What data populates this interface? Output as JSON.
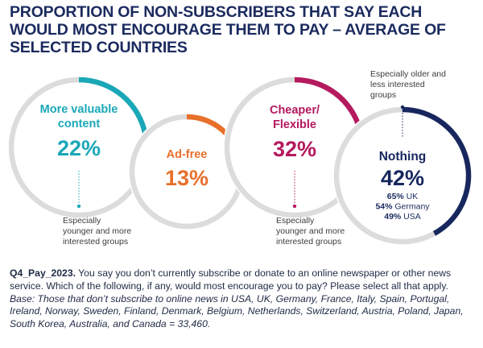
{
  "title": "PROPORTION OF NON-SUBSCRIBERS THAT SAY EACH WOULD MOST ENCOURAGE THEM TO PAY – AVERAGE OF SELECTED COUNTRIES",
  "chart_data": {
    "type": "pie",
    "title": "PROPORTION OF NON-SUBSCRIBERS THAT SAY EACH WOULD MOST ENCOURAGE THEM TO PAY – AVERAGE OF SELECTED COUNTRIES",
    "unit": "%",
    "items": [
      {
        "label_lines": [
          "More valuable",
          "content"
        ],
        "value": 22,
        "value_label": "22%",
        "color": "#1aa8b8",
        "annotation_lines": [
          "Especially",
          "younger and more",
          "interested groups"
        ]
      },
      {
        "label_lines": [
          "Ad-free"
        ],
        "value": 13,
        "value_label": "13%",
        "color": "#e8702a"
      },
      {
        "label_lines": [
          "Cheaper/",
          "Flexible"
        ],
        "value": 32,
        "value_label": "32%",
        "color": "#b5195e",
        "annotation_lines": [
          "Especially",
          "younger and more",
          "interested groups"
        ]
      },
      {
        "label_lines": [
          "Nothing"
        ],
        "value": 42,
        "value_label": "42%",
        "color": "#17275e",
        "annotation_lines": [
          "Especially older and",
          "less interested",
          "groups"
        ],
        "breakdown": [
          {
            "value_label": "65%",
            "country": "UK",
            "value": 65
          },
          {
            "value_label": "54%",
            "country": "Germany",
            "value": 54
          },
          {
            "value_label": "49%",
            "country": "USA",
            "value": 49
          }
        ]
      }
    ],
    "ring_track_color": "#dcdcdc"
  },
  "footnote": {
    "question_id": "Q4_Pay_2023.",
    "question": " You say you don’t currently subscribe or donate to an online newspaper or other news service. Which of the following, if any, would most encourage you to pay? Please select all that apply. ",
    "base": "Base: Those that don’t subscribe to online news in USA, UK, Germany, France, Italy, Spain, Portugal, Ireland, Norway, Sweden, Finland, Denmark, Belgium, Netherlands, Switzerland, Austria, Poland, Japan, South Korea, Australia, and Canada = 33,460."
  }
}
